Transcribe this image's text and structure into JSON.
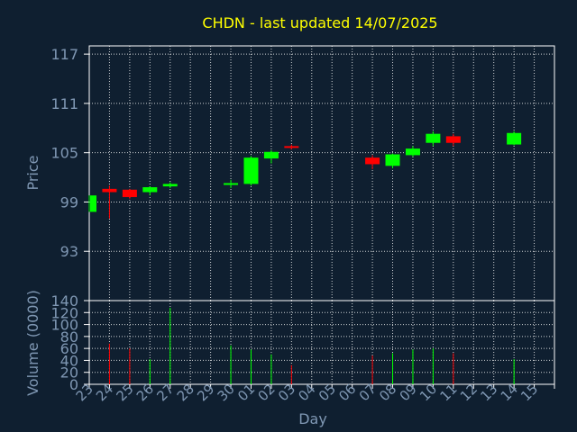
{
  "chart_data": {
    "type": "candlestick",
    "title": "CHDN - last updated 14/07/2025",
    "price_panel": {
      "ylabel": "Price",
      "ylim": [
        87,
        118
      ],
      "yticks": [
        93,
        99,
        105,
        111,
        117
      ],
      "grid": true
    },
    "volume_panel": {
      "ylabel": "Volume (0000)",
      "ylim": [
        0,
        140
      ],
      "yticks": [
        0,
        20,
        40,
        60,
        80,
        100,
        120,
        140
      ],
      "grid": true
    },
    "xlabel": "Day",
    "x_ticks": [
      "23",
      "24",
      "25",
      "26",
      "27",
      "28",
      "29",
      "30",
      "01",
      "02",
      "03",
      "04",
      "05",
      "06",
      "07",
      "08",
      "09",
      "10",
      "11",
      "12",
      "13",
      "14",
      "15"
    ],
    "colors": {
      "up": "#00ff00",
      "down": "#ff0000",
      "title": "#ffff00",
      "axis_text": "#7f97b3",
      "grid": "#ffffff",
      "background": "#0f1f30"
    },
    "candles": [
      {
        "day": "23",
        "open": 97.8,
        "close": 99.8,
        "high": 99.8,
        "low": 97.8,
        "volume": 0
      },
      {
        "day": "24",
        "open": 100.6,
        "close": 100.2,
        "high": 101.0,
        "low": 97.0,
        "volume": 68
      },
      {
        "day": "25",
        "open": 100.5,
        "close": 99.6,
        "high": 100.6,
        "low": 99.4,
        "volume": 60
      },
      {
        "day": "26",
        "open": 100.2,
        "close": 100.8,
        "high": 100.9,
        "low": 99.8,
        "volume": 42
      },
      {
        "day": "27",
        "open": 100.9,
        "close": 101.2,
        "high": 101.4,
        "low": 100.7,
        "volume": 128
      },
      {
        "day": "30",
        "open": 101.1,
        "close": 101.3,
        "high": 101.7,
        "low": 100.7,
        "volume": 65
      },
      {
        "day": "01",
        "open": 101.2,
        "close": 104.4,
        "high": 104.6,
        "low": 101.0,
        "volume": 58
      },
      {
        "day": "02",
        "open": 104.3,
        "close": 105.1,
        "high": 105.3,
        "low": 103.7,
        "volume": 50
      },
      {
        "day": "03",
        "open": 105.8,
        "close": 105.6,
        "high": 106.0,
        "low": 105.4,
        "volume": 32
      },
      {
        "day": "07",
        "open": 104.4,
        "close": 103.6,
        "high": 104.7,
        "low": 103.0,
        "volume": 48
      },
      {
        "day": "08",
        "open": 103.4,
        "close": 104.8,
        "high": 104.9,
        "low": 103.1,
        "volume": 52
      },
      {
        "day": "09",
        "open": 104.7,
        "close": 105.5,
        "high": 105.8,
        "low": 104.5,
        "volume": 58
      },
      {
        "day": "10",
        "open": 106.2,
        "close": 107.3,
        "high": 107.6,
        "low": 105.8,
        "volume": 60
      },
      {
        "day": "11",
        "open": 107.0,
        "close": 106.2,
        "high": 107.3,
        "low": 105.8,
        "volume": 52
      },
      {
        "day": "14",
        "open": 106.0,
        "close": 107.4,
        "high": 107.6,
        "low": 105.9,
        "volume": 42
      }
    ]
  }
}
